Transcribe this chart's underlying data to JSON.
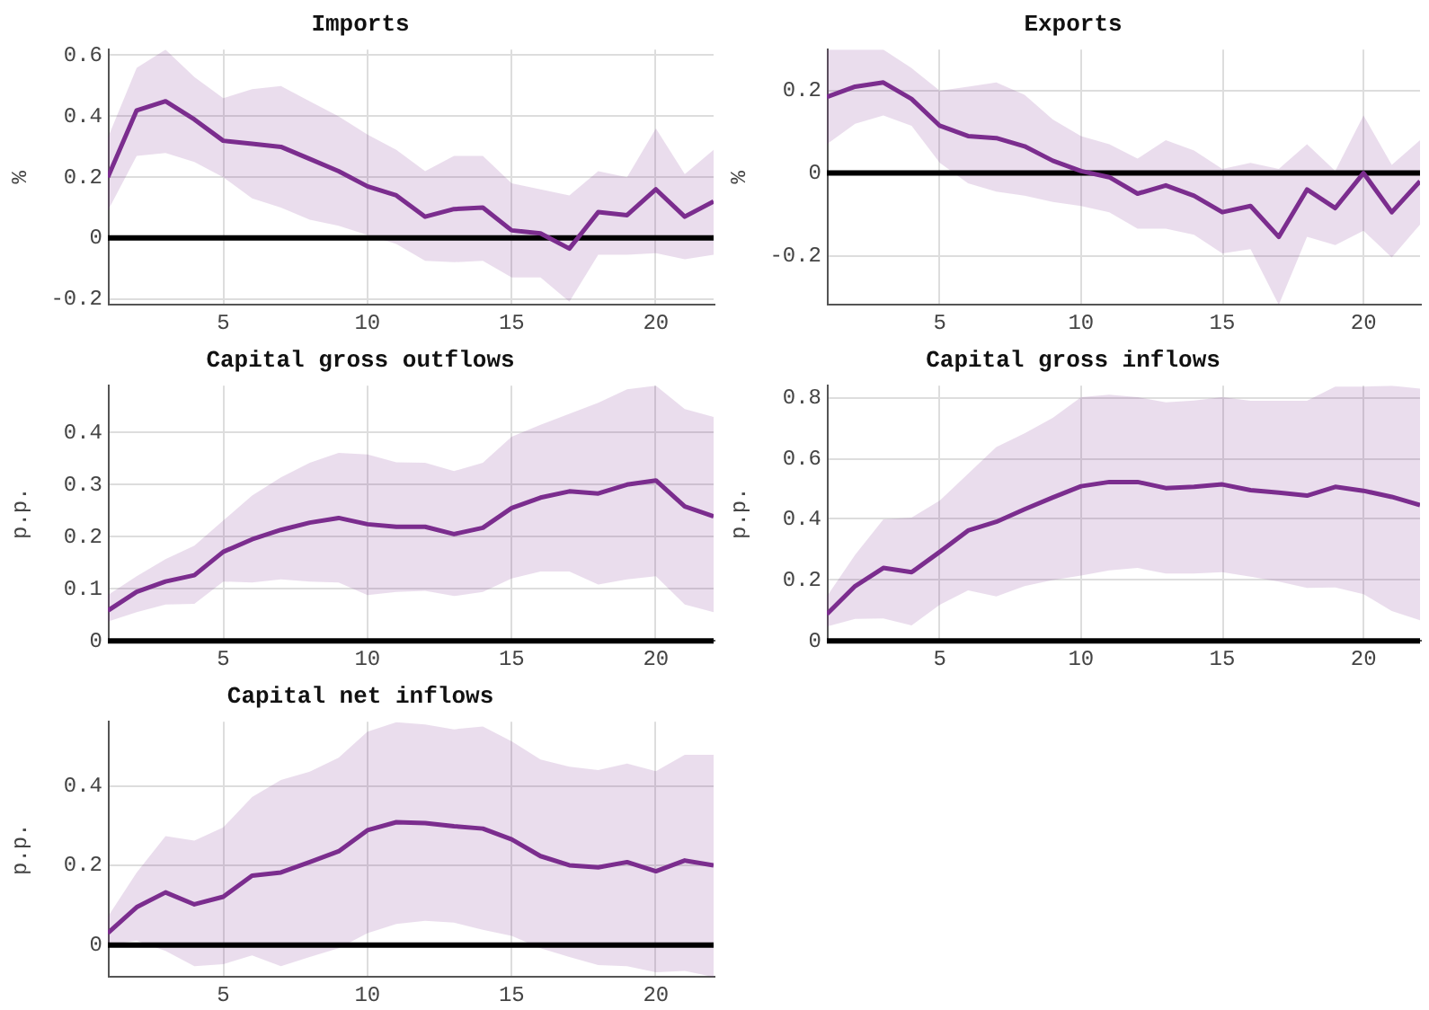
{
  "chart_data": [
    {
      "type": "line",
      "title": "Imports",
      "ylabel": "%",
      "x": [
        1,
        2,
        3,
        4,
        5,
        6,
        7,
        8,
        9,
        10,
        11,
        12,
        13,
        14,
        15,
        16,
        17,
        18,
        19,
        20,
        21,
        22
      ],
      "xlim": [
        1,
        22
      ],
      "xticks": [
        5,
        10,
        15,
        20
      ],
      "ylim": [
        -0.22,
        0.62
      ],
      "yticks": [
        -0.2,
        0,
        0.2,
        0.4,
        0.6
      ],
      "grid": true,
      "series": [
        {
          "color": "#7b2d8e",
          "values": [
            0.2,
            0.42,
            0.45,
            0.39,
            0.32,
            0.31,
            0.3,
            0.26,
            0.22,
            0.17,
            0.14,
            0.07,
            0.095,
            0.1,
            0.025,
            0.015,
            -0.035,
            0.085,
            0.075,
            0.16,
            0.07,
            0.12
          ],
          "lower": [
            0.09,
            0.27,
            0.28,
            0.25,
            0.2,
            0.13,
            0.1,
            0.06,
            0.04,
            0.01,
            -0.02,
            -0.075,
            -0.08,
            -0.075,
            -0.13,
            -0.13,
            -0.21,
            -0.055,
            -0.055,
            -0.05,
            -0.07,
            -0.055
          ],
          "upper": [
            0.33,
            0.56,
            0.62,
            0.53,
            0.46,
            0.49,
            0.5,
            0.45,
            0.4,
            0.34,
            0.29,
            0.22,
            0.27,
            0.27,
            0.18,
            0.16,
            0.14,
            0.22,
            0.2,
            0.36,
            0.21,
            0.29
          ]
        }
      ],
      "ref_lines": [
        {
          "axis": "y",
          "value": 0,
          "color": "#000000"
        }
      ]
    },
    {
      "type": "line",
      "title": "Exports",
      "ylabel": "%",
      "x": [
        1,
        2,
        3,
        4,
        5,
        6,
        7,
        8,
        9,
        10,
        11,
        12,
        13,
        14,
        15,
        16,
        17,
        18,
        19,
        20,
        21,
        22
      ],
      "xlim": [
        1,
        22
      ],
      "xticks": [
        5,
        10,
        15,
        20
      ],
      "ylim": [
        -0.32,
        0.3
      ],
      "yticks": [
        -0.2,
        0,
        0.2
      ],
      "grid": true,
      "series": [
        {
          "color": "#7b2d8e",
          "values": [
            0.185,
            0.21,
            0.22,
            0.18,
            0.115,
            0.09,
            0.085,
            0.065,
            0.03,
            0.005,
            -0.01,
            -0.05,
            -0.03,
            -0.055,
            -0.095,
            -0.08,
            -0.155,
            -0.04,
            -0.085,
            0,
            -0.095,
            -0.02
          ],
          "lower": [
            0.07,
            0.12,
            0.14,
            0.115,
            0.025,
            -0.025,
            -0.045,
            -0.055,
            -0.07,
            -0.08,
            -0.095,
            -0.135,
            -0.135,
            -0.15,
            -0.195,
            -0.185,
            -0.32,
            -0.155,
            -0.175,
            -0.14,
            -0.205,
            -0.125
          ],
          "upper": [
            0.3,
            0.3,
            0.3,
            0.255,
            0.2,
            0.21,
            0.22,
            0.19,
            0.13,
            0.09,
            0.07,
            0.035,
            0.08,
            0.055,
            0.01,
            0.025,
            0.01,
            0.07,
            0.005,
            0.14,
            0.02,
            0.08
          ]
        }
      ],
      "ref_lines": [
        {
          "axis": "y",
          "value": 0,
          "color": "#000000"
        }
      ]
    },
    {
      "type": "line",
      "title": "Capital gross outflows",
      "ylabel": "p.p.",
      "x": [
        1,
        2,
        3,
        4,
        5,
        6,
        7,
        8,
        9,
        10,
        11,
        12,
        13,
        14,
        15,
        16,
        17,
        18,
        19,
        20,
        21,
        22
      ],
      "xlim": [
        1,
        22
      ],
      "xticks": [
        5,
        10,
        15,
        20
      ],
      "ylim": [
        0,
        0.49
      ],
      "yticks": [
        0,
        0.1,
        0.2,
        0.3,
        0.4
      ],
      "grid": true,
      "series": [
        {
          "color": "#7b2d8e",
          "values": [
            0.058,
            0.094,
            0.114,
            0.126,
            0.171,
            0.195,
            0.213,
            0.227,
            0.236,
            0.224,
            0.219,
            0.219,
            0.205,
            0.217,
            0.255,
            0.275,
            0.287,
            0.283,
            0.3,
            0.308,
            0.258,
            0.239
          ],
          "lower": [
            0.037,
            0.055,
            0.07,
            0.071,
            0.114,
            0.112,
            0.118,
            0.114,
            0.112,
            0.088,
            0.094,
            0.096,
            0.086,
            0.094,
            0.12,
            0.133,
            0.133,
            0.108,
            0.118,
            0.124,
            0.07,
            0.055
          ],
          "upper": [
            0.088,
            0.124,
            0.157,
            0.183,
            0.231,
            0.279,
            0.314,
            0.342,
            0.361,
            0.358,
            0.343,
            0.342,
            0.326,
            0.342,
            0.392,
            0.415,
            0.436,
            0.457,
            0.483,
            0.49,
            0.445,
            0.43
          ]
        }
      ],
      "ref_lines": [
        {
          "axis": "y",
          "value": 0,
          "color": "#000000"
        }
      ]
    },
    {
      "type": "line",
      "title": "Capital gross inflows",
      "ylabel": "p.p.",
      "x": [
        1,
        2,
        3,
        4,
        5,
        6,
        7,
        8,
        9,
        10,
        11,
        12,
        13,
        14,
        15,
        16,
        17,
        18,
        19,
        20,
        21,
        22
      ],
      "xlim": [
        1,
        22
      ],
      "xticks": [
        5,
        10,
        15,
        20
      ],
      "ylim": [
        0,
        0.84
      ],
      "yticks": [
        0,
        0.2,
        0.4,
        0.6,
        0.8
      ],
      "grid": true,
      "series": [
        {
          "color": "#7b2d8e",
          "values": [
            0.088,
            0.18,
            0.24,
            0.226,
            0.293,
            0.363,
            0.392,
            0.433,
            0.472,
            0.509,
            0.523,
            0.523,
            0.503,
            0.507,
            0.515,
            0.496,
            0.488,
            0.478,
            0.507,
            0.494,
            0.474,
            0.447
          ],
          "lower": [
            0.047,
            0.072,
            0.074,
            0.051,
            0.119,
            0.166,
            0.146,
            0.18,
            0.2,
            0.215,
            0.232,
            0.24,
            0.222,
            0.222,
            0.226,
            0.211,
            0.195,
            0.174,
            0.176,
            0.154,
            0.098,
            0.068
          ],
          "upper": [
            0.146,
            0.283,
            0.4,
            0.406,
            0.462,
            0.55,
            0.638,
            0.683,
            0.734,
            0.802,
            0.81,
            0.802,
            0.785,
            0.791,
            0.802,
            0.79,
            0.79,
            0.79,
            0.837,
            0.837,
            0.84,
            0.83
          ]
        }
      ],
      "ref_lines": [
        {
          "axis": "y",
          "value": 0,
          "color": "#000000"
        }
      ]
    },
    {
      "type": "line",
      "title": "Capital net inflows",
      "ylabel": "p.p.",
      "x": [
        1,
        2,
        3,
        4,
        5,
        6,
        7,
        8,
        9,
        10,
        11,
        12,
        13,
        14,
        15,
        16,
        17,
        18,
        19,
        20,
        21,
        22
      ],
      "xlim": [
        1,
        22
      ],
      "xticks": [
        5,
        10,
        15,
        20
      ],
      "ylim": [
        -0.08,
        0.56
      ],
      "yticks": [
        0,
        0.2,
        0.4
      ],
      "grid": true,
      "series": [
        {
          "color": "#7b2d8e",
          "values": [
            0.03,
            0.095,
            0.132,
            0.102,
            0.121,
            0.174,
            0.182,
            0.208,
            0.235,
            0.288,
            0.308,
            0.306,
            0.298,
            0.292,
            0.265,
            0.223,
            0.2,
            0.195,
            0.208,
            0.185,
            0.212,
            0.2
          ],
          "lower": [
            0,
            0.011,
            -0.015,
            -0.053,
            -0.048,
            -0.026,
            -0.053,
            -0.03,
            -0.008,
            0.03,
            0.053,
            0.061,
            0.056,
            0.038,
            0.023,
            -0.008,
            -0.03,
            -0.05,
            -0.053,
            -0.068,
            -0.065,
            -0.08
          ],
          "upper": [
            0.071,
            0.182,
            0.273,
            0.262,
            0.295,
            0.371,
            0.414,
            0.435,
            0.47,
            0.535,
            0.559,
            0.553,
            0.541,
            0.548,
            0.511,
            0.465,
            0.447,
            0.439,
            0.455,
            0.436,
            0.477,
            0.477
          ]
        }
      ],
      "ref_lines": [
        {
          "axis": "y",
          "value": 0,
          "color": "#000000"
        }
      ]
    }
  ]
}
